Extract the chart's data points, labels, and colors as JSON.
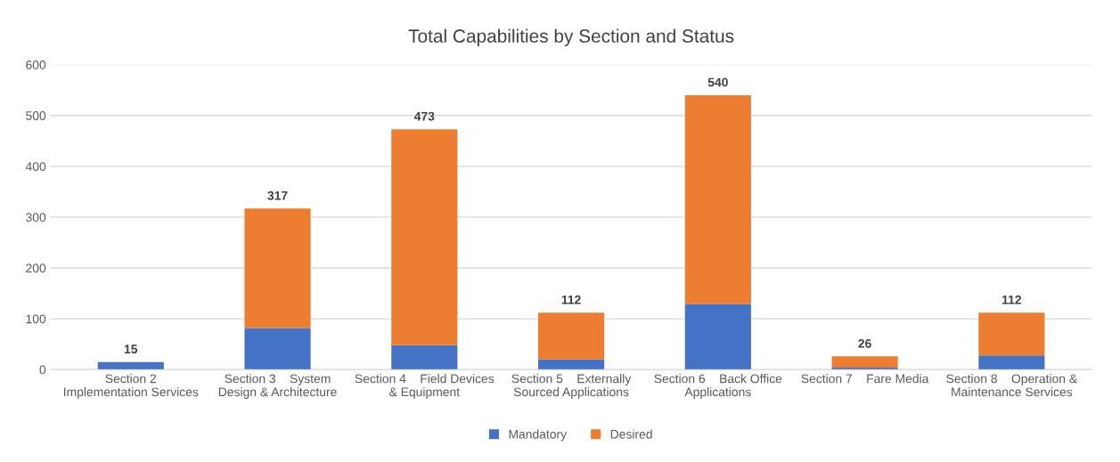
{
  "chart_data": {
    "type": "bar",
    "title": "Total Capabilities by Section and Status",
    "stacked": true,
    "categories": [
      "Section 2\nImplementation Services",
      "Section 3    System\nDesign & Architecture",
      "Section 4    Field Devices\n& Equipment",
      "Section 5    Externally\nSourced Applications",
      "Section 6    Back Office\nApplications",
      "Section 7    Fare Media",
      "Section 8    Operation &\nMaintenance Services"
    ],
    "series": [
      {
        "name": "Mandatory",
        "color": "#4472c4",
        "values": [
          15,
          82,
          48,
          20,
          129,
          4,
          28
        ]
      },
      {
        "name": "Desired",
        "color": "#ed7d31",
        "values": [
          0,
          235,
          425,
          92,
          411,
          22,
          84
        ]
      }
    ],
    "totals": [
      "15",
      "317",
      "473",
      "112",
      "540",
      "26",
      "112"
    ],
    "ylim": [
      0,
      600
    ],
    "yticks": [
      0,
      100,
      200,
      300,
      400,
      500,
      600
    ],
    "grid": "y",
    "legend": "bottom"
  }
}
